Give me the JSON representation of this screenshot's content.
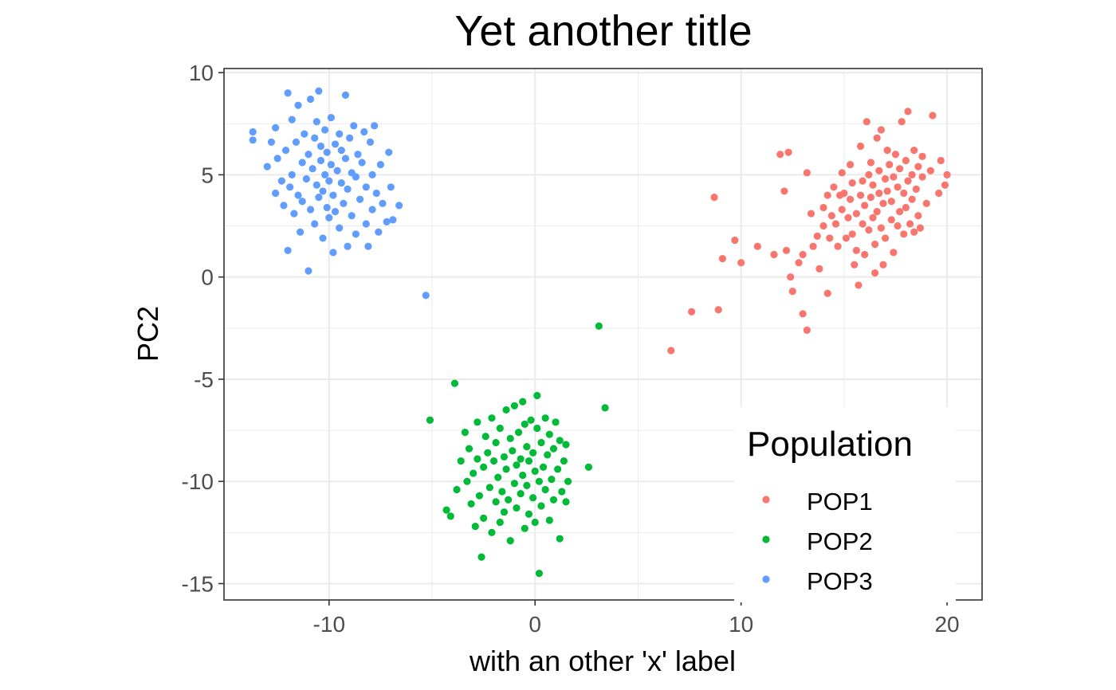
{
  "chart_data": {
    "type": "scatter",
    "title": "Yet another title",
    "xlabel": "with an other 'x' label",
    "ylabel": "PC2",
    "xlim": [
      -15.1,
      21.7
    ],
    "ylim": [
      -15.8,
      10.2
    ],
    "x_ticks": [
      -10,
      0,
      10,
      20
    ],
    "x_tick_labels": [
      "-10",
      "0",
      "10",
      "20"
    ],
    "y_ticks": [
      -15,
      -10,
      -5,
      0,
      5,
      10
    ],
    "y_tick_labels": [
      "-15",
      "-10",
      "-5",
      "0",
      "5",
      "10"
    ],
    "grid": true,
    "legend": {
      "title": "Population",
      "placement": "bottom-right inside",
      "entries": [
        "POP1",
        "POP2",
        "POP3"
      ]
    },
    "series": [
      {
        "name": "POP1",
        "color": "#F8766D",
        "points": [
          [
            6.6,
            -3.6
          ],
          [
            7.6,
            -1.7
          ],
          [
            8.7,
            3.9
          ],
          [
            8.9,
            -1.6
          ],
          [
            9.1,
            0.9
          ],
          [
            9.7,
            1.8
          ],
          [
            10.0,
            0.7
          ],
          [
            10.8,
            1.5
          ],
          [
            11.6,
            1.1
          ],
          [
            11.9,
            6.0
          ],
          [
            12.1,
            4.2
          ],
          [
            12.2,
            1.3
          ],
          [
            12.3,
            6.1
          ],
          [
            12.5,
            -0.7
          ],
          [
            12.4,
            0.0
          ],
          [
            12.8,
            0.7
          ],
          [
            13.0,
            1.1
          ],
          [
            13.0,
            -1.8
          ],
          [
            13.2,
            -2.6
          ],
          [
            13.2,
            5.1
          ],
          [
            13.4,
            3.1
          ],
          [
            13.5,
            1.5
          ],
          [
            13.7,
            2.0
          ],
          [
            13.8,
            0.4
          ],
          [
            14.0,
            2.5
          ],
          [
            14.0,
            3.4
          ],
          [
            14.2,
            4.0
          ],
          [
            14.2,
            -0.8
          ],
          [
            14.3,
            1.9
          ],
          [
            14.4,
            3.0
          ],
          [
            14.5,
            4.4
          ],
          [
            14.6,
            2.6
          ],
          [
            14.7,
            1.5
          ],
          [
            14.8,
            4.0
          ],
          [
            14.9,
            3.3
          ],
          [
            14.9,
            5.1
          ],
          [
            15.0,
            4.1
          ],
          [
            15.1,
            1.9
          ],
          [
            15.2,
            2.9
          ],
          [
            15.3,
            3.8
          ],
          [
            15.3,
            5.5
          ],
          [
            15.4,
            2.1
          ],
          [
            15.4,
            4.6
          ],
          [
            15.5,
            0.6
          ],
          [
            15.6,
            1.3
          ],
          [
            15.6,
            3.1
          ],
          [
            15.7,
            -0.4
          ],
          [
            15.8,
            4.0
          ],
          [
            15.8,
            6.4
          ],
          [
            15.9,
            2.6
          ],
          [
            15.9,
            4.7
          ],
          [
            16.0,
            3.5
          ],
          [
            16.0,
            1.1
          ],
          [
            16.1,
            7.6
          ],
          [
            16.2,
            5.0
          ],
          [
            16.2,
            2.3
          ],
          [
            16.3,
            3.9
          ],
          [
            16.3,
            5.6
          ],
          [
            16.4,
            2.9
          ],
          [
            16.4,
            4.5
          ],
          [
            16.5,
            0.2
          ],
          [
            16.5,
            1.6
          ],
          [
            16.6,
            3.2
          ],
          [
            16.6,
            6.8
          ],
          [
            16.7,
            4.1
          ],
          [
            16.7,
            5.2
          ],
          [
            16.8,
            2.4
          ],
          [
            16.8,
            7.2
          ],
          [
            16.9,
            0.6
          ],
          [
            16.9,
            3.6
          ],
          [
            17.0,
            4.8
          ],
          [
            17.0,
            1.9
          ],
          [
            17.1,
            6.2
          ],
          [
            17.1,
            4.2
          ],
          [
            17.2,
            5.5
          ],
          [
            17.3,
            2.8
          ],
          [
            17.3,
            3.7
          ],
          [
            17.4,
            4.9
          ],
          [
            17.4,
            1.2
          ],
          [
            17.5,
            6.0
          ],
          [
            17.6,
            2.5
          ],
          [
            17.6,
            4.4
          ],
          [
            17.7,
            5.3
          ],
          [
            17.7,
            3.2
          ],
          [
            17.8,
            7.6
          ],
          [
            17.9,
            4.1
          ],
          [
            17.9,
            2.1
          ],
          [
            18.0,
            5.7
          ],
          [
            18.0,
            3.4
          ],
          [
            18.1,
            8.1
          ],
          [
            18.1,
            4.7
          ],
          [
            18.2,
            2.6
          ],
          [
            18.3,
            5.0
          ],
          [
            18.3,
            3.8
          ],
          [
            18.4,
            6.2
          ],
          [
            18.4,
            2.2
          ],
          [
            18.5,
            4.3
          ],
          [
            18.6,
            5.4
          ],
          [
            18.6,
            3.0
          ],
          [
            18.7,
            2.4
          ],
          [
            18.8,
            4.9
          ],
          [
            18.8,
            5.9
          ],
          [
            19.0,
            3.6
          ],
          [
            19.2,
            5.2
          ],
          [
            19.3,
            7.9
          ],
          [
            19.6,
            4.1
          ],
          [
            19.7,
            5.7
          ],
          [
            19.9,
            4.5
          ],
          [
            20.0,
            5.0
          ]
        ]
      },
      {
        "name": "POP2",
        "color": "#00BA38",
        "points": [
          [
            -5.1,
            -7.0
          ],
          [
            -3.9,
            -5.2
          ],
          [
            -4.3,
            -11.4
          ],
          [
            -4.1,
            -11.7
          ],
          [
            -3.8,
            -10.4
          ],
          [
            -3.6,
            -9.0
          ],
          [
            -3.4,
            -7.6
          ],
          [
            -3.3,
            -10.0
          ],
          [
            -3.2,
            -8.4
          ],
          [
            -3.1,
            -11.1
          ],
          [
            -3.0,
            -9.6
          ],
          [
            -2.9,
            -12.2
          ],
          [
            -2.8,
            -7.1
          ],
          [
            -2.8,
            -8.9
          ],
          [
            -2.7,
            -10.7
          ],
          [
            -2.6,
            -13.7
          ],
          [
            -2.5,
            -9.3
          ],
          [
            -2.5,
            -11.8
          ],
          [
            -2.4,
            -7.8
          ],
          [
            -2.3,
            -8.6
          ],
          [
            -2.2,
            -10.3
          ],
          [
            -2.1,
            -12.5
          ],
          [
            -2.1,
            -6.9
          ],
          [
            -2.0,
            -9.0
          ],
          [
            -1.9,
            -11.0
          ],
          [
            -1.9,
            -8.1
          ],
          [
            -1.8,
            -9.8
          ],
          [
            -1.7,
            -12.0
          ],
          [
            -1.7,
            -7.4
          ],
          [
            -1.6,
            -10.5
          ],
          [
            -1.5,
            -8.8
          ],
          [
            -1.5,
            -11.5
          ],
          [
            -1.4,
            -6.5
          ],
          [
            -1.4,
            -9.4
          ],
          [
            -1.3,
            -10.9
          ],
          [
            -1.2,
            -7.9
          ],
          [
            -1.2,
            -12.9
          ],
          [
            -1.1,
            -8.5
          ],
          [
            -1.0,
            -10.1
          ],
          [
            -1.0,
            -6.3
          ],
          [
            -0.9,
            -9.2
          ],
          [
            -0.9,
            -11.3
          ],
          [
            -0.8,
            -7.6
          ],
          [
            -0.7,
            -8.9
          ],
          [
            -0.7,
            -10.6
          ],
          [
            -0.6,
            -6.1
          ],
          [
            -0.6,
            -9.7
          ],
          [
            -0.5,
            -12.3
          ],
          [
            -0.5,
            -7.2
          ],
          [
            -0.4,
            -8.3
          ],
          [
            -0.4,
            -10.2
          ],
          [
            -0.3,
            -11.6
          ],
          [
            -0.3,
            -9.0
          ],
          [
            -0.2,
            -7.0
          ],
          [
            -0.1,
            -10.8
          ],
          [
            -0.1,
            -8.6
          ],
          [
            0.0,
            -9.5
          ],
          [
            0.0,
            -12.0
          ],
          [
            0.1,
            -7.4
          ],
          [
            0.1,
            -5.8
          ],
          [
            0.2,
            -10.0
          ],
          [
            0.2,
            -14.5
          ],
          [
            0.3,
            -8.1
          ],
          [
            0.3,
            -11.2
          ],
          [
            0.4,
            -9.3
          ],
          [
            0.5,
            -6.9
          ],
          [
            0.5,
            -10.4
          ],
          [
            0.6,
            -8.7
          ],
          [
            0.7,
            -11.9
          ],
          [
            0.7,
            -7.7
          ],
          [
            0.8,
            -9.9
          ],
          [
            0.9,
            -8.4
          ],
          [
            0.9,
            -10.9
          ],
          [
            1.0,
            -7.1
          ],
          [
            1.1,
            -9.4
          ],
          [
            1.2,
            -12.8
          ],
          [
            1.2,
            -8.0
          ],
          [
            1.3,
            -10.5
          ],
          [
            1.4,
            -9.0
          ],
          [
            1.5,
            -11.0
          ],
          [
            1.5,
            -8.2
          ],
          [
            1.6,
            -10.0
          ],
          [
            2.6,
            -9.3
          ],
          [
            3.1,
            -2.4
          ],
          [
            3.4,
            -6.4
          ]
        ]
      },
      {
        "name": "POP3",
        "color": "#619CFF",
        "points": [
          [
            -13.7,
            7.1
          ],
          [
            -13.7,
            6.7
          ],
          [
            -13.0,
            5.4
          ],
          [
            -12.8,
            6.6
          ],
          [
            -12.6,
            4.1
          ],
          [
            -12.6,
            7.3
          ],
          [
            -12.5,
            5.8
          ],
          [
            -12.3,
            4.7
          ],
          [
            -12.2,
            3.5
          ],
          [
            -12.1,
            6.2
          ],
          [
            -12.0,
            9.0
          ],
          [
            -12.0,
            1.3
          ],
          [
            -11.9,
            4.4
          ],
          [
            -11.8,
            7.7
          ],
          [
            -11.8,
            5.0
          ],
          [
            -11.7,
            3.1
          ],
          [
            -11.6,
            6.6
          ],
          [
            -11.5,
            4.0
          ],
          [
            -11.5,
            8.4
          ],
          [
            -11.4,
            2.2
          ],
          [
            -11.3,
            5.6
          ],
          [
            -11.3,
            3.7
          ],
          [
            -11.2,
            7.0
          ],
          [
            -11.1,
            4.8
          ],
          [
            -11.0,
            6.0
          ],
          [
            -11.0,
            0.3
          ],
          [
            -10.9,
            3.3
          ],
          [
            -10.9,
            8.7
          ],
          [
            -10.8,
            5.3
          ],
          [
            -10.7,
            6.8
          ],
          [
            -10.7,
            2.6
          ],
          [
            -10.6,
            4.5
          ],
          [
            -10.6,
            7.6
          ],
          [
            -10.5,
            3.9
          ],
          [
            -10.5,
            9.1
          ],
          [
            -10.4,
            5.7
          ],
          [
            -10.4,
            6.4
          ],
          [
            -10.3,
            1.9
          ],
          [
            -10.3,
            4.2
          ],
          [
            -10.2,
            7.2
          ],
          [
            -10.2,
            5.0
          ],
          [
            -10.1,
            3.4
          ],
          [
            -10.1,
            6.1
          ],
          [
            -10.0,
            4.7
          ],
          [
            -10.0,
            2.9
          ],
          [
            -9.9,
            5.5
          ],
          [
            -9.9,
            7.8
          ],
          [
            -9.8,
            1.2
          ],
          [
            -9.8,
            4.0
          ],
          [
            -9.7,
            6.5
          ],
          [
            -9.7,
            3.2
          ],
          [
            -9.6,
            5.2
          ],
          [
            -9.5,
            7.0
          ],
          [
            -9.5,
            2.4
          ],
          [
            -9.4,
            4.6
          ],
          [
            -9.4,
            6.2
          ],
          [
            -9.3,
            3.6
          ],
          [
            -9.2,
            8.9
          ],
          [
            -9.2,
            5.8
          ],
          [
            -9.1,
            1.5
          ],
          [
            -9.1,
            4.3
          ],
          [
            -9.0,
            6.8
          ],
          [
            -8.9,
            3.0
          ],
          [
            -8.9,
            5.1
          ],
          [
            -8.8,
            7.4
          ],
          [
            -8.7,
            2.1
          ],
          [
            -8.7,
            4.9
          ],
          [
            -8.6,
            6.0
          ],
          [
            -8.5,
            3.8
          ],
          [
            -8.4,
            5.6
          ],
          [
            -8.3,
            7.1
          ],
          [
            -8.2,
            2.6
          ],
          [
            -8.2,
            4.4
          ],
          [
            -8.1,
            1.5
          ],
          [
            -8.0,
            6.6
          ],
          [
            -7.9,
            3.3
          ],
          [
            -7.9,
            5.0
          ],
          [
            -7.8,
            7.4
          ],
          [
            -7.7,
            4.1
          ],
          [
            -7.6,
            2.2
          ],
          [
            -7.5,
            5.5
          ],
          [
            -7.4,
            3.6
          ],
          [
            -7.2,
            2.7
          ],
          [
            -7.1,
            6.1
          ],
          [
            -7.0,
            4.4
          ],
          [
            -6.9,
            2.8
          ],
          [
            -6.6,
            3.5
          ],
          [
            -5.3,
            -0.9
          ]
        ]
      }
    ]
  }
}
